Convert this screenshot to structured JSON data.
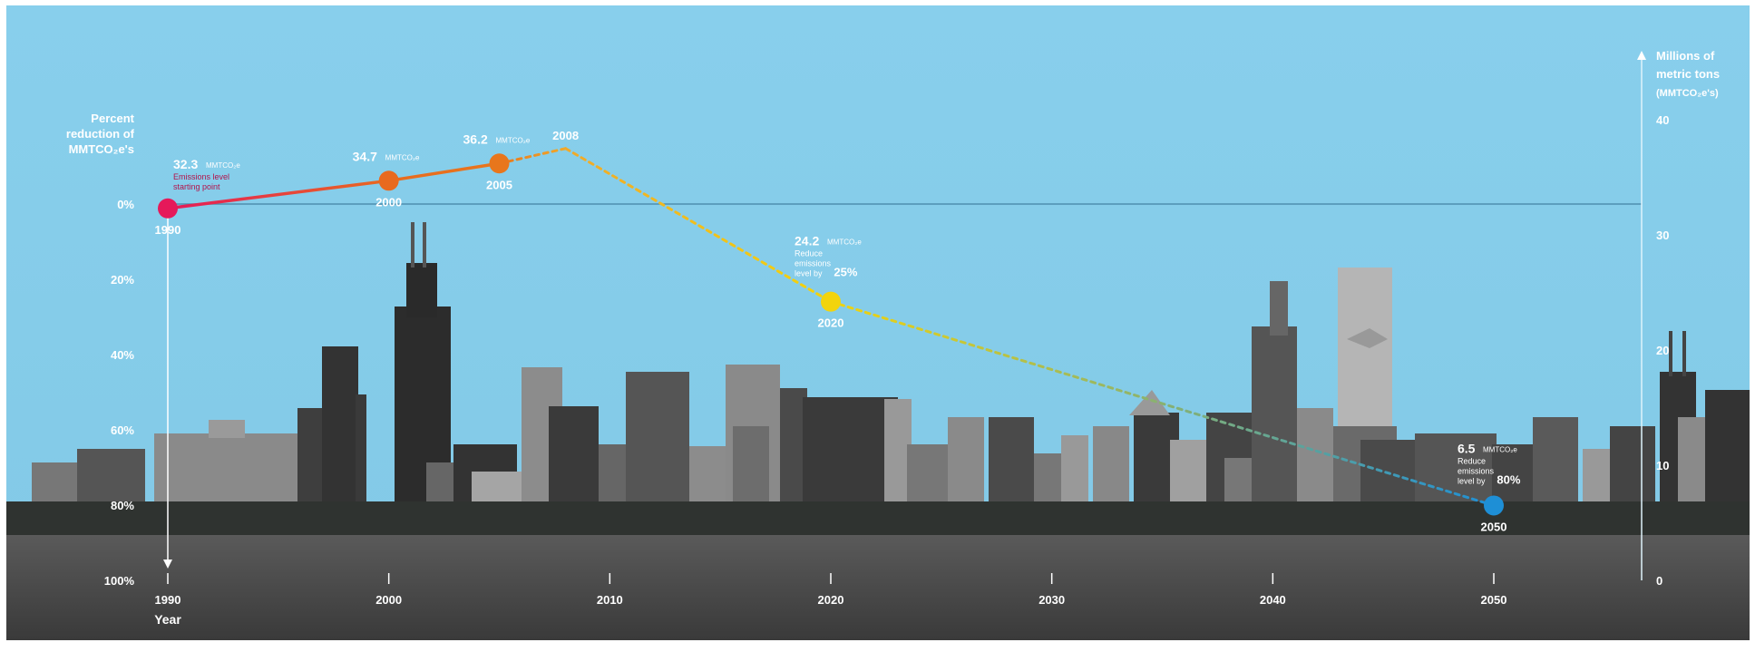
{
  "chart_data": {
    "type": "line",
    "left_axis": {
      "label_lines": [
        "Percent",
        "reduction of",
        "MMTCO₂e's"
      ],
      "ticks": [
        "0%",
        "20%",
        "40%",
        "60%",
        "80%",
        "100%"
      ],
      "range": [
        0,
        100
      ]
    },
    "right_axis": {
      "label_lines": [
        "Millions of",
        "metric tons",
        "(MMTCO₂e's)"
      ],
      "ticks": [
        "40",
        "30",
        "20",
        "10",
        "0"
      ],
      "range": [
        0,
        40
      ]
    },
    "x_axis": {
      "label": "Year",
      "ticks": [
        "1990",
        "2000",
        "2010",
        "2020",
        "2030",
        "2040",
        "2050"
      ],
      "range": [
        1990,
        2050
      ]
    },
    "series": [
      {
        "segment": "actual",
        "style": "solid",
        "x": [
          1990,
          2000,
          2005
        ],
        "y": [
          32.3,
          34.7,
          36.2
        ]
      },
      {
        "segment": "target",
        "style": "dashed",
        "x": [
          2005,
          2008,
          2020,
          2050
        ],
        "y": [
          36.2,
          37.5,
          24.2,
          6.5
        ]
      }
    ],
    "points": [
      {
        "year": "1990",
        "value": "32.3",
        "unit": "MMTCO₂e",
        "note": [
          "Emissions level",
          "starting point"
        ],
        "color": "#e5195a"
      },
      {
        "year": "2000",
        "value": "34.7",
        "unit": "MMTCO₂e",
        "note": [],
        "color": "#e86a1f"
      },
      {
        "year": "2005",
        "value": "36.2",
        "unit": "MMTCO₂e",
        "note": [],
        "color": "#e8761c"
      },
      {
        "year": "2008",
        "value": "",
        "unit": "",
        "note": [],
        "color": "#f0a92a"
      },
      {
        "year": "2020",
        "value": "24.2",
        "unit": "MMTCO₂e",
        "note": [
          "Reduce",
          "emissions",
          "level by "
        ],
        "pct": "25%",
        "color": "#f2d40d"
      },
      {
        "year": "2050",
        "value": "6.5",
        "unit": "MMTCO₂e",
        "note": [
          "Reduce",
          "emissions",
          "level by "
        ],
        "pct": "80%",
        "color": "#1e8fd6"
      }
    ],
    "baseline_percent": "0%",
    "colors": {
      "sky": "#86cdea",
      "water": "#4a4a4a",
      "baseline": "#4f8fb0",
      "label": "#ffffff",
      "note_1990": "#b3124a"
    }
  }
}
